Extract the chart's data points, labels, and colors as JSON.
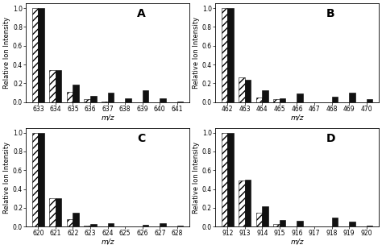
{
  "panels": {
    "A": {
      "label": "A",
      "x_ticks": [
        633,
        634,
        635,
        636,
        637,
        638,
        639,
        640,
        641
      ],
      "hatch_values": [
        1.0,
        0.34,
        0.11,
        0.03,
        0.01,
        0.0,
        0.0,
        0.0,
        0.0
      ],
      "solid_values": [
        1.0,
        0.34,
        0.19,
        0.065,
        0.1,
        0.04,
        0.13,
        0.045,
        0.01
      ],
      "ylim": [
        0,
        1.05
      ],
      "yticks": [
        0.0,
        0.2,
        0.4,
        0.6,
        0.8,
        1.0
      ]
    },
    "B": {
      "label": "B",
      "x_ticks": [
        462,
        463,
        464,
        465,
        466,
        467,
        468,
        469,
        470
      ],
      "hatch_values": [
        1.0,
        0.26,
        0.05,
        0.03,
        0.0,
        0.0,
        0.0,
        0.0,
        0.0
      ],
      "solid_values": [
        1.0,
        0.24,
        0.13,
        0.04,
        0.09,
        0.0,
        0.06,
        0.1,
        0.03
      ],
      "ylim": [
        0,
        1.05
      ],
      "yticks": [
        0.0,
        0.2,
        0.4,
        0.6,
        0.8,
        1.0
      ]
    },
    "C": {
      "label": "C",
      "x_ticks": [
        620,
        621,
        622,
        623,
        624,
        625,
        626,
        627,
        628
      ],
      "hatch_values": [
        1.0,
        0.3,
        0.08,
        0.01,
        0.0,
        0.0,
        0.0,
        0.0,
        0.0
      ],
      "solid_values": [
        1.0,
        0.3,
        0.15,
        0.03,
        0.04,
        0.0,
        0.02,
        0.04,
        0.01
      ],
      "ylim": [
        0,
        1.05
      ],
      "yticks": [
        0.0,
        0.2,
        0.4,
        0.6,
        0.8,
        1.0
      ]
    },
    "D": {
      "label": "D",
      "x_ticks": [
        912,
        913,
        914,
        915,
        916,
        917,
        918,
        919,
        920
      ],
      "hatch_values": [
        1.0,
        0.49,
        0.15,
        0.03,
        0.0,
        0.0,
        0.0,
        0.0,
        0.0
      ],
      "solid_values": [
        1.0,
        0.5,
        0.22,
        0.07,
        0.06,
        0.0,
        0.1,
        0.05,
        0.01
      ],
      "ylim": [
        0,
        1.05
      ],
      "yticks": [
        0.0,
        0.2,
        0.4,
        0.6,
        0.8,
        1.0
      ]
    }
  },
  "ylabel": "Relative Ion Intensity",
  "xlabel": "m/z",
  "solid_color": "#111111",
  "hatch_pattern": "////",
  "bar_width": 0.35,
  "tick_fontsize": 5.5,
  "axis_label_fontsize": 6.5,
  "panel_label_fontsize": 10,
  "ylabel_fontsize": 6.0
}
